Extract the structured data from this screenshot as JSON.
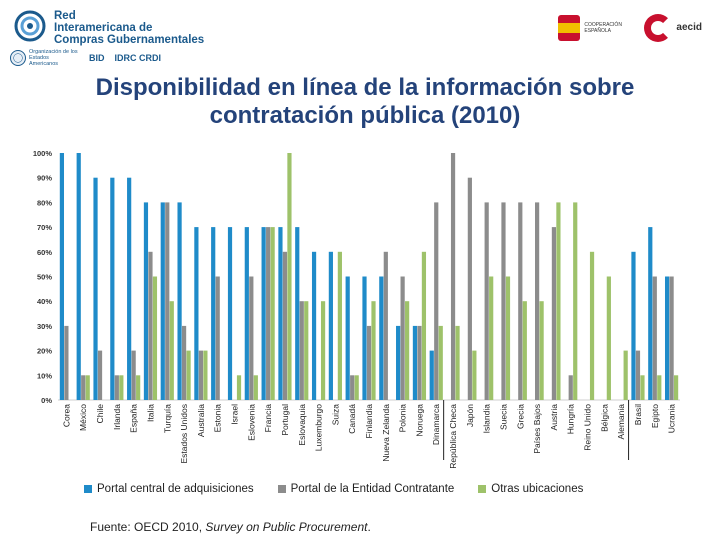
{
  "header": {
    "network_name_lines": [
      "Red",
      "Interamericana de",
      "Compras Gubernamentales"
    ],
    "partners": [
      {
        "name": "oas",
        "label": "Organización de los Estados Americanos"
      },
      {
        "name": "bid",
        "label": "BID"
      },
      {
        "name": "idrc",
        "label": "IDRC CRDI"
      }
    ],
    "spain_label": "COOPERACIÓN ESPAÑOLA",
    "aecid_label": "aecid"
  },
  "title_line1": "Disponibilidad en línea de la información sobre",
  "title_line2": "contratación pública (2010)",
  "source": {
    "prefix": "Fuente: OECD 2010, ",
    "italic": "Survey on Public Procurement",
    "suffix": "."
  },
  "colors": {
    "central": "#1f8bc9",
    "entidad": "#8c8c8c",
    "otras": "#9ec26a",
    "title": "#24437a"
  },
  "chart_data": {
    "type": "bar",
    "ylim": [
      0,
      100
    ],
    "yticks": [
      "0%",
      "10%",
      "20%",
      "30%",
      "40%",
      "50%",
      "60%",
      "70%",
      "80%",
      "90%",
      "100%"
    ],
    "ytick_values": [
      0,
      10,
      20,
      30,
      40,
      50,
      60,
      70,
      80,
      90,
      100
    ],
    "grid": false,
    "legend_position": "bottom",
    "categories": [
      "Corea",
      "México",
      "Chile",
      "Irlanda",
      "España",
      "Italia",
      "Turquía",
      "Estados Unidos",
      "Australia",
      "Estonia",
      "Israel",
      "Eslovenia",
      "Francia",
      "Portugal",
      "Eslovaquia",
      "Luxemburgo",
      "Suiza",
      "Canadá",
      "Finlandia",
      "Nueva Zelanda",
      "Polonia",
      "Noruega",
      "Dinamarca",
      "República Checa",
      "Japón",
      "Islandia",
      "Suecia",
      "Grecia",
      "Países Bajos",
      "Austria",
      "Hungría",
      "Reino Unido",
      "Bélgica",
      "Alemania",
      "Brasil",
      "Egipto",
      "Ucrania"
    ],
    "groups": [
      {
        "from": 0,
        "to": 22
      },
      {
        "from": 23,
        "to": 33
      },
      {
        "from": 34,
        "to": 36
      }
    ],
    "series": [
      {
        "name": "Portal central de adquisiciones",
        "values": [
          100,
          100,
          90,
          90,
          90,
          80,
          80,
          80,
          70,
          70,
          70,
          70,
          70,
          70,
          70,
          60,
          60,
          50,
          50,
          50,
          30,
          30,
          20,
          0,
          0,
          0,
          0,
          0,
          0,
          0,
          0,
          0,
          0,
          0,
          60,
          70,
          50
        ]
      },
      {
        "name": "Portal de la Entidad Contratante",
        "values": [
          30,
          10,
          20,
          10,
          20,
          60,
          80,
          30,
          20,
          50,
          0,
          50,
          70,
          60,
          40,
          0,
          0,
          10,
          30,
          60,
          50,
          30,
          80,
          100,
          90,
          80,
          80,
          80,
          80,
          70,
          10,
          0,
          0,
          0,
          20,
          50,
          50
        ]
      },
      {
        "name": "Otras ubicaciones",
        "values": [
          0,
          10,
          0,
          10,
          10,
          50,
          40,
          20,
          20,
          0,
          10,
          10,
          70,
          100,
          40,
          40,
          60,
          10,
          40,
          0,
          40,
          60,
          30,
          30,
          20,
          50,
          50,
          40,
          40,
          80,
          80,
          60,
          50,
          20,
          10,
          10,
          10
        ]
      }
    ]
  }
}
